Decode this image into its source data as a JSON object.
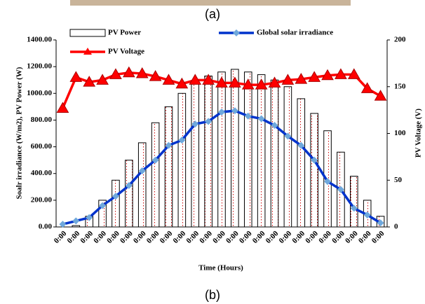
{
  "caption_a": "(a)",
  "caption_b": "(b)",
  "chart_data": {
    "type": "combo",
    "ylabel": "Soalr irradiance (W/m2), PV Power (W)",
    "y2label": "PV Voltage (V)",
    "xlabel": "Time (Hours)",
    "categories": [
      "0:00",
      "0:00",
      "0:00",
      "0:00",
      "0:00",
      "0:00",
      "0:00",
      "0:00",
      "0:00",
      "0:00",
      "0:00",
      "0:00",
      "0:00",
      "0:00",
      "0:00",
      "0:00",
      "0:00",
      "0:00",
      "0:00",
      "0:00",
      "0:00",
      "0:00",
      "0:00",
      "0:00",
      "0:00"
    ],
    "ylim": [
      0,
      1400
    ],
    "yticks": [
      {
        "value": 0,
        "label": "0.00"
      },
      {
        "value": 200,
        "label": "200.00"
      },
      {
        "value": 400,
        "label": "400.00"
      },
      {
        "value": 600,
        "label": "600.00"
      },
      {
        "value": 800,
        "label": "800.00"
      },
      {
        "value": 1000,
        "label": "1000.00"
      },
      {
        "value": 1200,
        "label": "1200.00"
      },
      {
        "value": 1400,
        "label": "1400.00"
      }
    ],
    "y2lim": [
      0,
      200
    ],
    "y2ticks": [
      0,
      50,
      100,
      150,
      200
    ],
    "series": [
      {
        "name": "PV Power",
        "type": "bar",
        "color": "#cc0000",
        "values": [
          0,
          10,
          80,
          200,
          350,
          500,
          630,
          780,
          900,
          1000,
          1080,
          1130,
          1160,
          1180,
          1160,
          1140,
          1100,
          1050,
          960,
          850,
          720,
          560,
          380,
          200,
          80
        ]
      },
      {
        "name": "Global solar irradiance",
        "type": "line",
        "color": "#0033cc",
        "marker_color": "#6fa8dc",
        "marker": "diamond",
        "values": [
          20,
          45,
          70,
          160,
          230,
          310,
          420,
          500,
          610,
          650,
          770,
          790,
          860,
          870,
          830,
          810,
          760,
          680,
          610,
          500,
          340,
          280,
          140,
          90,
          30
        ]
      },
      {
        "name": "PV Voltage",
        "type": "line",
        "axis": "y2",
        "color": "#ff0000",
        "marker_color": "#ff0000",
        "marker": "triangle",
        "values": [
          127,
          160,
          155,
          157,
          163,
          165,
          164,
          161,
          157,
          153,
          157,
          157,
          154,
          154,
          152,
          152,
          154,
          157,
          158,
          160,
          162,
          163,
          163,
          148,
          140
        ]
      }
    ]
  }
}
